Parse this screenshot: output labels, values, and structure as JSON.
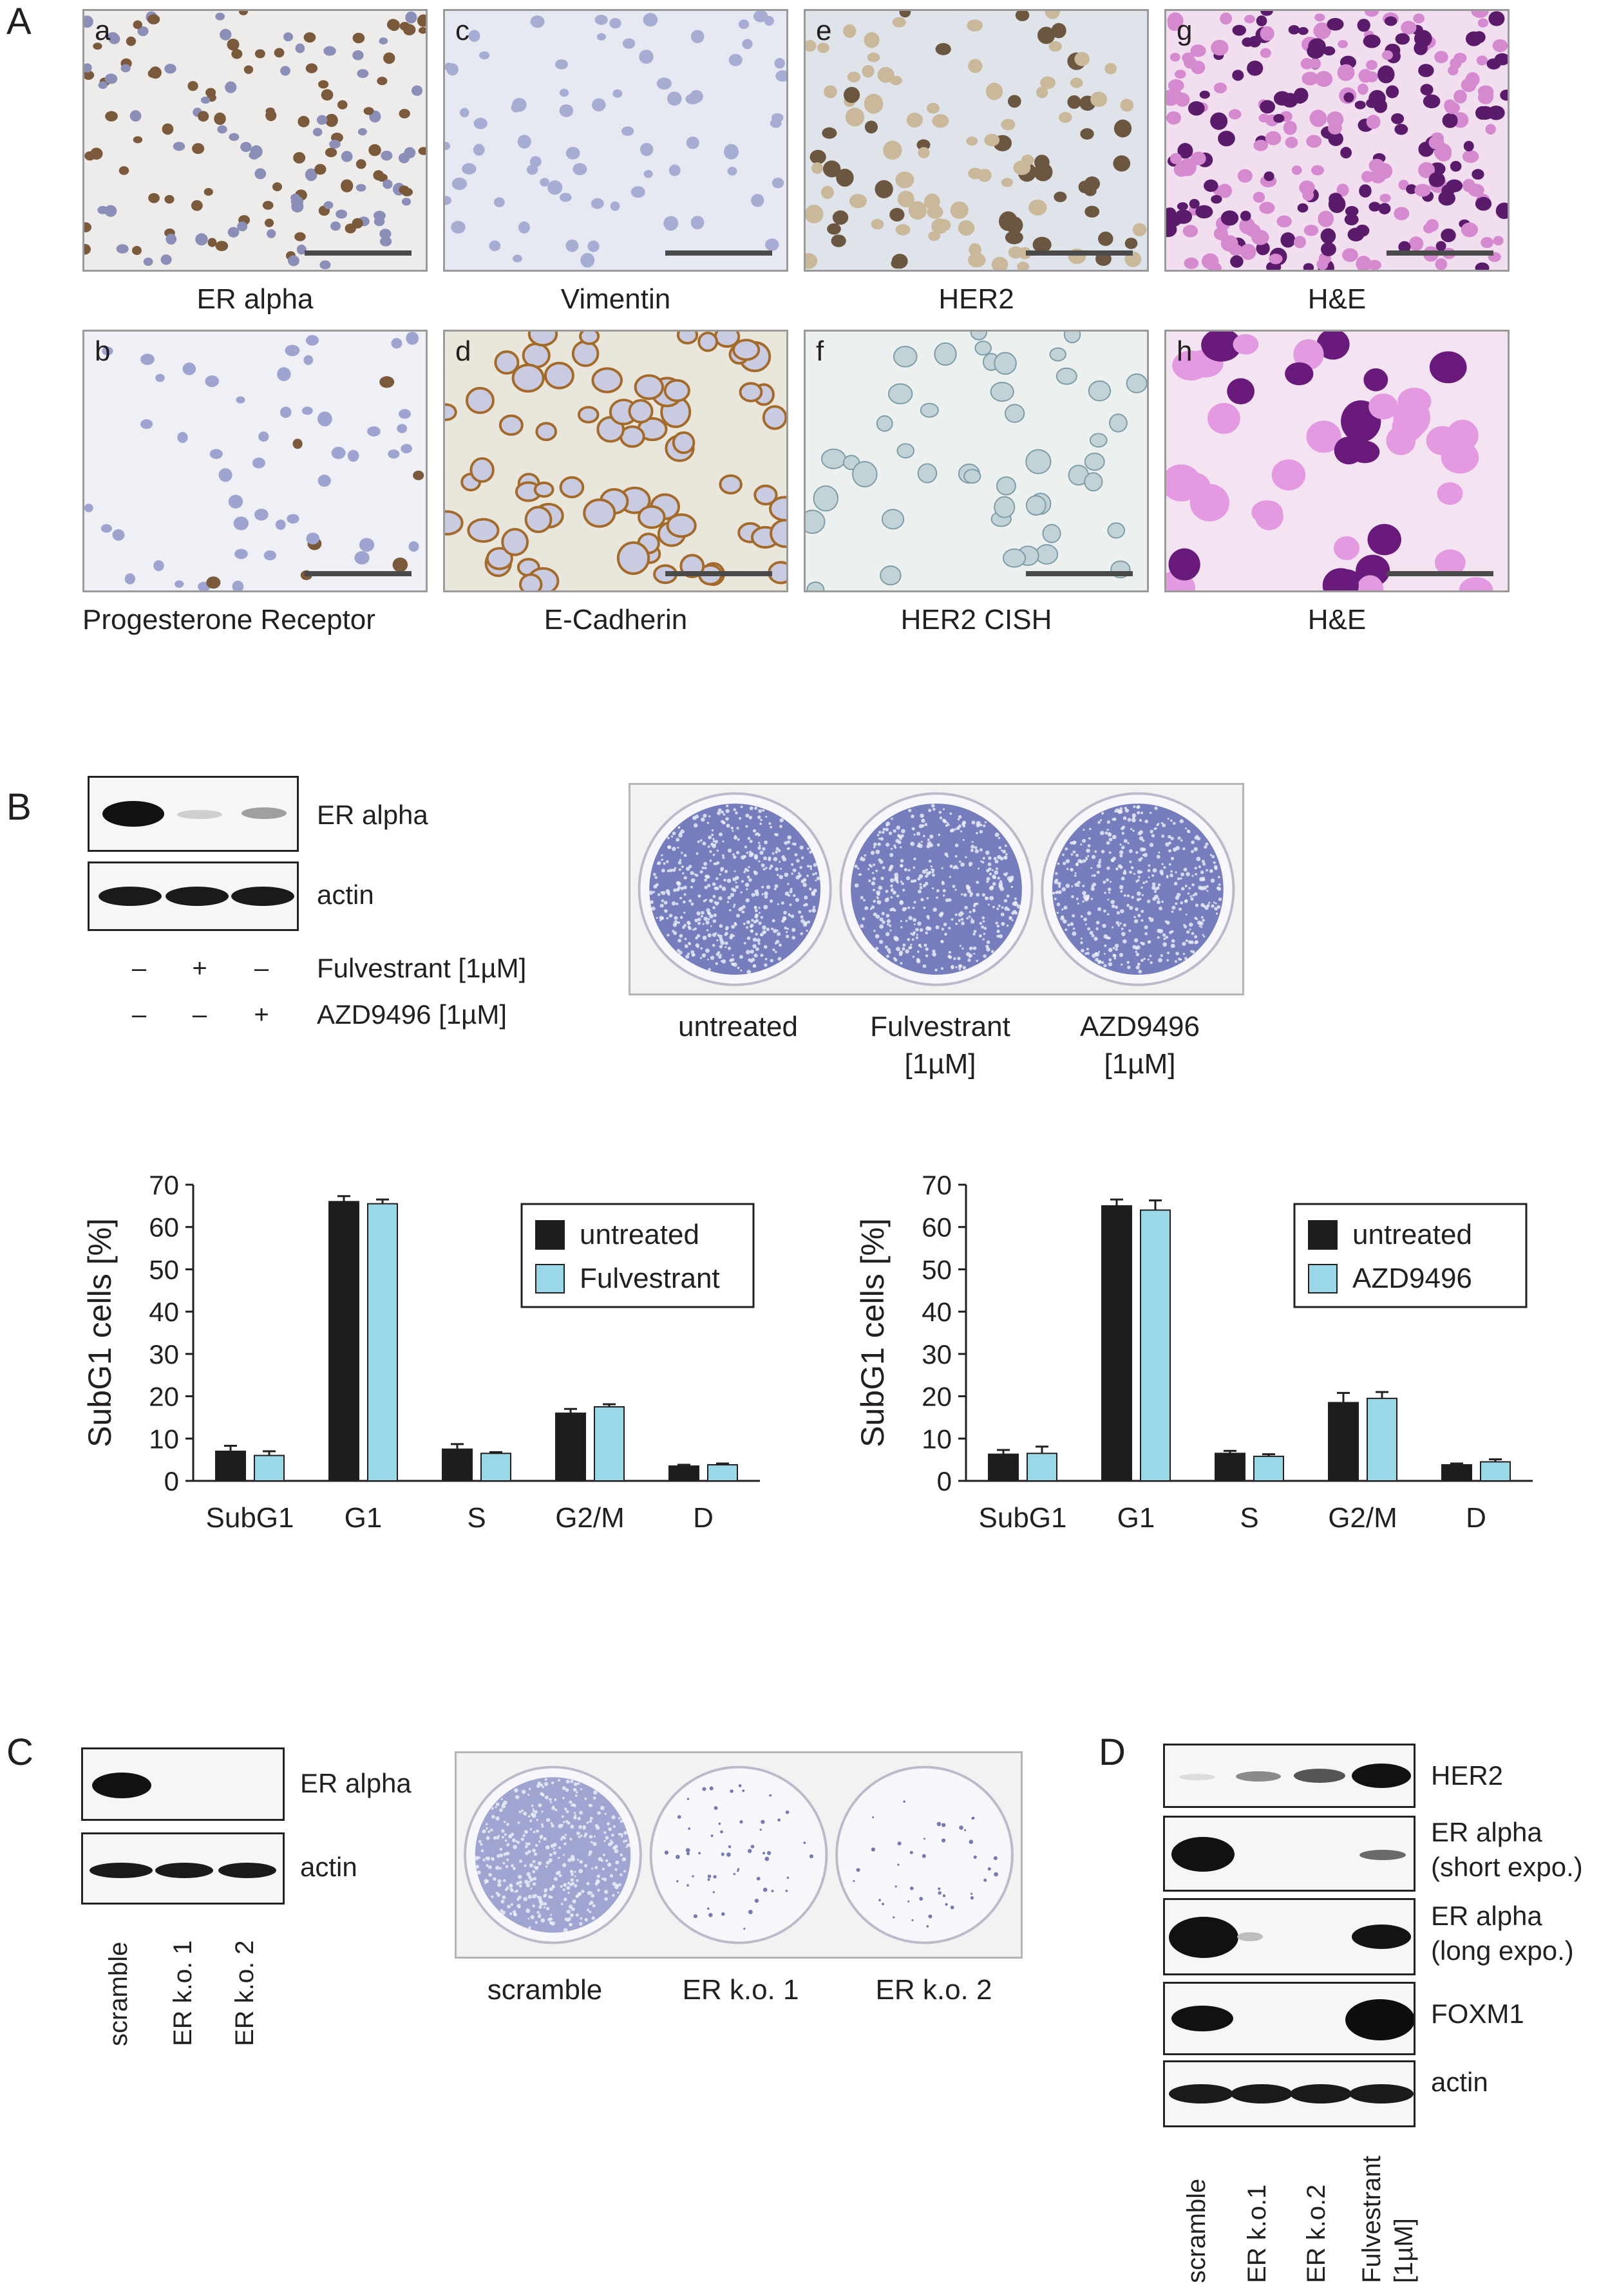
{
  "panels": {
    "A": "A",
    "B": "B",
    "C": "C",
    "D": "D"
  },
  "panel_a": {
    "tiles": [
      {
        "letter": "a",
        "caption": "ER alpha"
      },
      {
        "letter": "c",
        "caption": "Vimentin"
      },
      {
        "letter": "e",
        "caption": "HER2"
      },
      {
        "letter": "g",
        "caption": "H&E"
      },
      {
        "letter": "b",
        "caption": "Progesterone Receptor"
      },
      {
        "letter": "d",
        "caption": "E-Cadherin"
      },
      {
        "letter": "f",
        "caption": "HER2 CISH"
      },
      {
        "letter": "h",
        "caption": "H&E"
      }
    ]
  },
  "panel_b": {
    "blot_labels": [
      "ER alpha",
      "actin"
    ],
    "treatments": [
      {
        "label": "Fulvestrant [1µM]",
        "signs": [
          "–",
          "+",
          "–"
        ]
      },
      {
        "label": "AZD9496 [1µM]",
        "signs": [
          "–",
          "–",
          "+"
        ]
      }
    ],
    "plates": [
      {
        "line1": "untreated",
        "line2": ""
      },
      {
        "line1": "Fulvestrant",
        "line2": "[1µM]"
      },
      {
        "line1": "AZD9496",
        "line2": "[1µM]"
      }
    ]
  },
  "chart_data": [
    {
      "type": "bar",
      "ylabel": "SubG1 cells [%]",
      "ylim": [
        0,
        70
      ],
      "yticks": [
        0,
        10,
        20,
        30,
        40,
        50,
        60,
        70
      ],
      "categories": [
        "SubG1",
        "G1",
        "S",
        "G2/M",
        "D"
      ],
      "series": [
        {
          "name": "untreated",
          "color": "#1d1d1b",
          "values": [
            7,
            66,
            7.5,
            16,
            3.5
          ],
          "errors": [
            1.3,
            1.3,
            1.2,
            1.0,
            0.3
          ]
        },
        {
          "name": "Fulvestrant",
          "color": "#9ad8e8",
          "values": [
            6,
            65.5,
            6.5,
            17.5,
            3.8
          ],
          "errors": [
            1.0,
            1.0,
            0.3,
            0.6,
            0.3
          ]
        }
      ],
      "legend": "top-right"
    },
    {
      "type": "bar",
      "ylabel": "SubG1 cells [%]",
      "ylim": [
        0,
        70
      ],
      "yticks": [
        0,
        10,
        20,
        30,
        40,
        50,
        60,
        70
      ],
      "categories": [
        "SubG1",
        "G1",
        "S",
        "G2/M",
        "D"
      ],
      "series": [
        {
          "name": "untreated",
          "color": "#1d1d1b",
          "values": [
            6.3,
            65,
            6.5,
            18.5,
            3.8
          ],
          "errors": [
            1.0,
            1.5,
            0.6,
            2.3,
            0.3
          ]
        },
        {
          "name": "AZD9496",
          "color": "#9ad8e8",
          "values": [
            6.5,
            64,
            5.8,
            19.5,
            4.5
          ],
          "errors": [
            1.6,
            2.3,
            0.5,
            1.5,
            0.6
          ]
        }
      ],
      "legend": "top-right"
    }
  ],
  "panel_c": {
    "blot_labels": [
      "ER alpha",
      "actin"
    ],
    "lanes": [
      "scramble",
      "ER k.o. 1",
      "ER k.o. 2"
    ],
    "plates": [
      "scramble",
      "ER k.o. 1",
      "ER k.o. 2"
    ]
  },
  "panel_d": {
    "blot_labels": [
      {
        "line1": "HER2",
        "line2": ""
      },
      {
        "line1": "ER alpha",
        "line2": "(short expo.)"
      },
      {
        "line1": "ER alpha",
        "line2": "(long expo.)"
      },
      {
        "line1": "FOXM1",
        "line2": ""
      },
      {
        "line1": "actin",
        "line2": ""
      }
    ],
    "lanes": [
      "scramble",
      "ER k.o.1",
      "ER k.o.2",
      "Fulvestrant",
      "[1µM]"
    ]
  }
}
